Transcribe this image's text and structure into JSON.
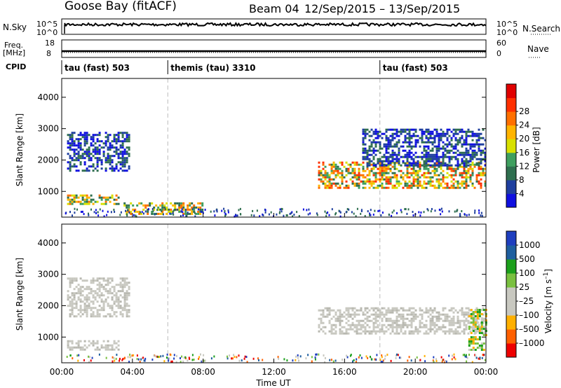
{
  "header": {
    "station": "Goose Bay (fitACF)",
    "beam_label": "Beam 04",
    "date_range": "12/Sep/2015 – 13/Sep/2015"
  },
  "strip_panels": {
    "nsky_label": "N.Sky",
    "nsearch_label": "N.Search",
    "nsky_ticks": [
      "10^5",
      "10^0"
    ],
    "nsearch_ticks": [
      "10^5",
      "10^0"
    ],
    "freq_label": "Freq.",
    "freq_unit": "[MHz]",
    "freq_ticks": [
      "18",
      "8"
    ],
    "nave_label": "Nave",
    "nave_ticks": [
      "60",
      "0"
    ],
    "cpid_label": "CPID"
  },
  "cpid_segments": [
    {
      "label": "tau (fast) 503",
      "start_hour": 0
    },
    {
      "label": "themis (tau) 3310",
      "start_hour": 6
    },
    {
      "label": "tau (fast) 503",
      "start_hour": 18
    }
  ],
  "colors": {
    "power_scale": [
      "#1010e0",
      "#1f3f9f",
      "#2f6f4f",
      "#3f9f5f",
      "#d8e000",
      "#ffb400",
      "#ff7000",
      "#ff3000",
      "#e00000"
    ],
    "velocity_scale": [
      "#ee0000",
      "#ff6000",
      "#ffb000",
      "#c8c8c0",
      "#c8c8c0",
      "#7ac040",
      "#1ca01c",
      "#1f5f9f",
      "#1f3fbf"
    ]
  },
  "chart_data": [
    {
      "type": "heatmap",
      "name": "Power panel",
      "xlabel": "",
      "ylabel": "Slant Range [km]",
      "x_range_hours": [
        0,
        24
      ],
      "ylim": [
        180,
        4600
      ],
      "y_ticks": [
        1000,
        2000,
        3000,
        4000
      ],
      "colorbar": {
        "label": "Power [dB]",
        "ticks": [
          "4",
          "8",
          "12",
          "16",
          "20",
          "24",
          "28"
        ],
        "range": [
          0,
          32
        ]
      },
      "regions": [
        {
          "x": [
            0.3,
            3.8
          ],
          "y": [
            1650,
            2900
          ],
          "level": "8"
        },
        {
          "x": [
            0.3,
            3.2
          ],
          "y": [
            600,
            900
          ],
          "level": "16-24"
        },
        {
          "x": [
            3.5,
            8.0
          ],
          "y": [
            250,
            650
          ],
          "level": "16-24"
        },
        {
          "x": [
            14.5,
            24.0
          ],
          "y": [
            1100,
            1950
          ],
          "level": "16-28"
        },
        {
          "x": [
            17.0,
            24.0
          ],
          "y": [
            1800,
            3000
          ],
          "level": "4-8"
        }
      ]
    },
    {
      "type": "heatmap",
      "name": "Velocity panel",
      "xlabel": "Time UT",
      "ylabel": "Slant Range [km]",
      "x_ticks": [
        "00:00",
        "04:00",
        "08:00",
        "12:00",
        "16:00",
        "20:00",
        "00:00"
      ],
      "x_range_hours": [
        0,
        24
      ],
      "ylim": [
        180,
        4600
      ],
      "y_ticks": [
        1000,
        2000,
        3000,
        4000
      ],
      "colorbar": {
        "label": "Velocity [m s^-1]",
        "ticks": [
          "1000",
          "500",
          "100",
          "25",
          "–25",
          "–100",
          "–500",
          "–1000"
        ]
      },
      "regions": [
        {
          "x": [
            0.3,
            3.8
          ],
          "y": [
            1650,
            2900
          ],
          "level": "ground scatter"
        },
        {
          "x": [
            0.3,
            3.2
          ],
          "y": [
            600,
            900
          ],
          "level": "ground scatter"
        },
        {
          "x": [
            14.5,
            24.0
          ],
          "y": [
            1100,
            1950
          ],
          "level": "ground scatter"
        },
        {
          "x": [
            23.0,
            24.0
          ],
          "y": [
            600,
            1900
          ],
          "level": "100 to -100"
        }
      ]
    }
  ]
}
